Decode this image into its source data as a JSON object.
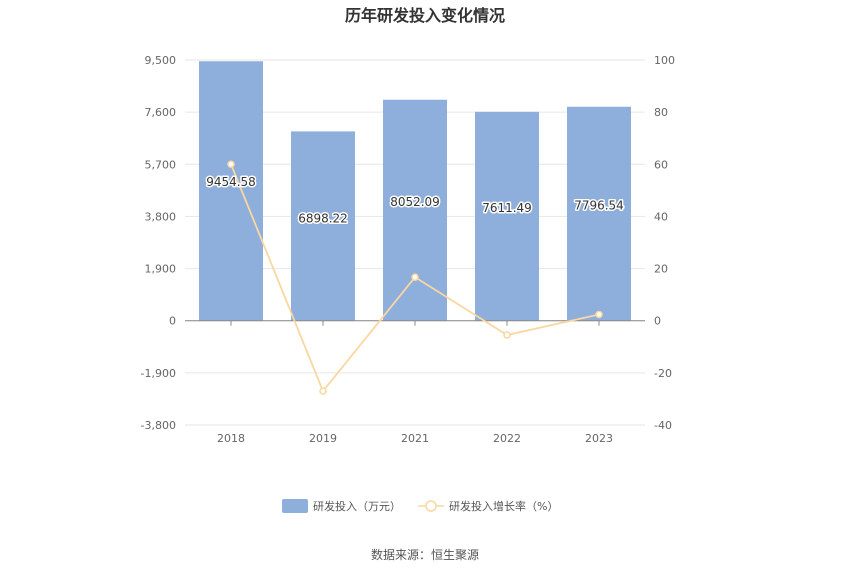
{
  "chart_data": {
    "type": "bar",
    "title": "历年研发投入变化情况",
    "categories": [
      "2018",
      "2019",
      "2021",
      "2022",
      "2023"
    ],
    "series": [
      {
        "name": "研发投入（万元）",
        "type": "bar",
        "axis": "left",
        "color": "#8eaedb",
        "values": [
          9454.58,
          6898.22,
          8052.09,
          7611.49,
          7796.54
        ],
        "labels": [
          "9454.58",
          "6898.22",
          "8052.09",
          "7611.49",
          "7796.54"
        ]
      },
      {
        "name": "研发投入增长率（%）",
        "type": "line",
        "axis": "right",
        "color": "#fad7a0",
        "values": [
          60,
          -27,
          16.7,
          -5.5,
          2.4
        ]
      }
    ],
    "y_left": {
      "ticks": [
        "9,500",
        "7,600",
        "5,700",
        "3,800",
        "1,900",
        "0",
        "-1,900",
        "-3,800"
      ],
      "ylim": [
        -3800,
        9500
      ]
    },
    "y_right": {
      "ticks": [
        "100",
        "80",
        "60",
        "40",
        "20",
        "0",
        "-20",
        "-40"
      ],
      "ylim": [
        -40,
        100
      ]
    },
    "legend_position": "bottom",
    "grid": true
  },
  "source": "数据来源：恒生聚源"
}
